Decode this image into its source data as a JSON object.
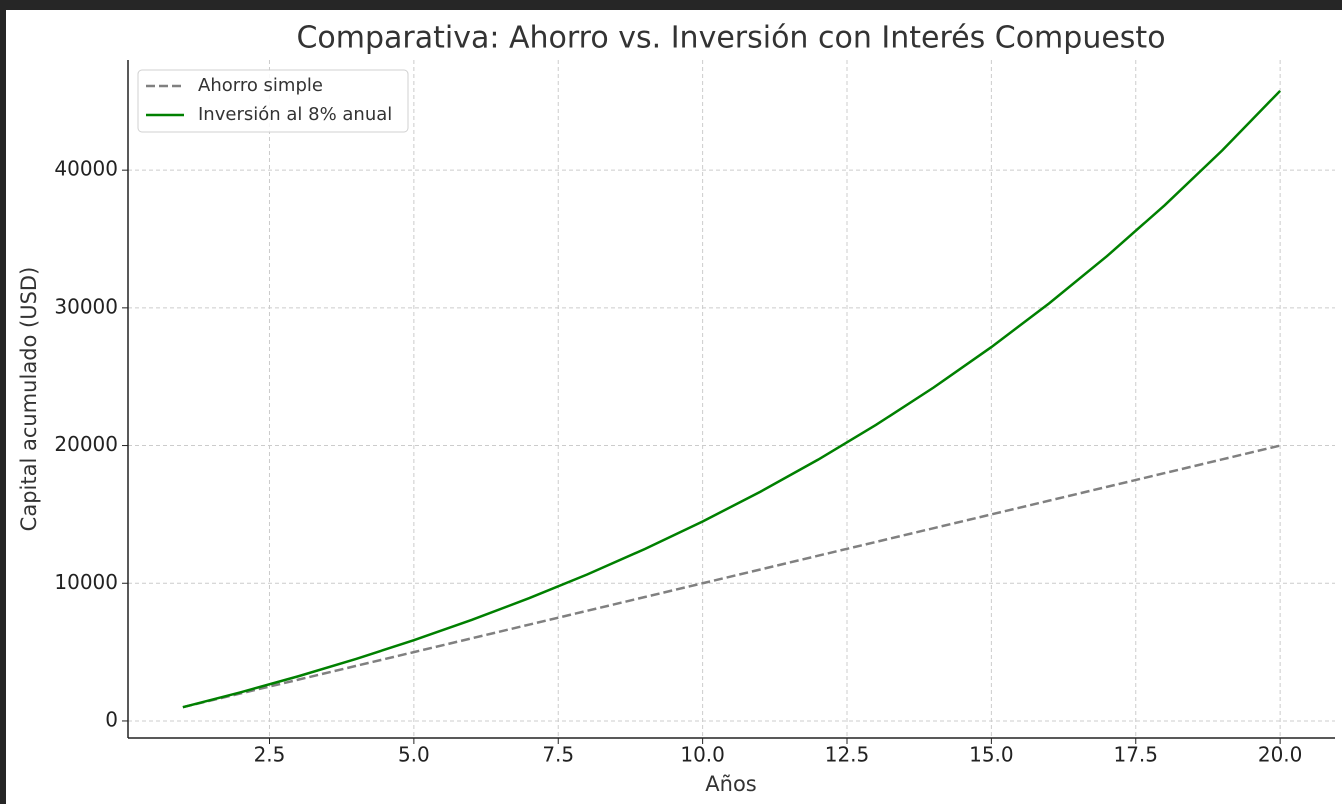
{
  "chart_data": {
    "type": "line",
    "title": "Comparativa: Ahorro vs. Inversión con Interés Compuesto",
    "x_label": "Años",
    "y_label": "Capital acumulado (USD)",
    "x": [
      1,
      2,
      3,
      4,
      5,
      6,
      7,
      8,
      9,
      10,
      11,
      12,
      13,
      14,
      15,
      16,
      17,
      18,
      19,
      20
    ],
    "series": [
      {
        "name": "Ahorro simple",
        "color": "#808080",
        "dash": true,
        "values": [
          1000,
          2000,
          3000,
          4000,
          5000,
          6000,
          7000,
          8000,
          9000,
          10000,
          11000,
          12000,
          13000,
          14000,
          15000,
          16000,
          17000,
          18000,
          19000,
          20000
        ]
      },
      {
        "name": "Inversión al 8% anual",
        "color": "#008000",
        "dash": false,
        "values": [
          1000,
          2080,
          3246,
          4506,
          5867,
          7336,
          8923,
          10637,
          12488,
          14487,
          16645,
          18977,
          21495,
          24215,
          27152,
          30324,
          33750,
          37450,
          41446,
          45762
        ]
      }
    ],
    "xlim": [
      0.05,
      20.95
    ],
    "ylim": [
      -1238,
      48000
    ],
    "xticks": [
      2.5,
      {
        "value": 5,
        "label": "5.0"
      },
      7.5,
      {
        "value": 10,
        "label": "10.0"
      },
      12.5,
      {
        "value": 15,
        "label": "15.0"
      },
      17.5,
      {
        "value": 20,
        "label": "20.0"
      }
    ],
    "yticks": [
      0,
      10000,
      20000,
      30000,
      40000
    ],
    "grid": true,
    "legend": "upper left"
  }
}
